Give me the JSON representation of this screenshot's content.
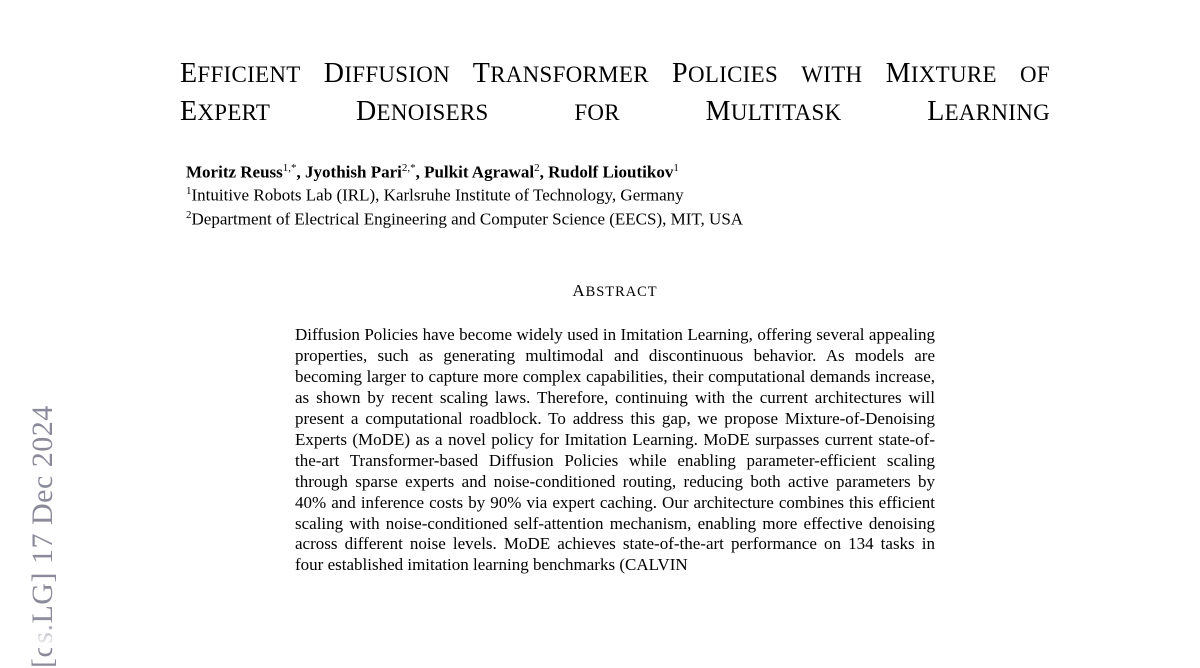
{
  "arxiv_stamp": "[cs.LG]  17 Dec 2024",
  "title_html": "E<span style='font-size:0.82em'>FFICIENT</span> D<span style='font-size:0.82em'>IFFUSION</span> T<span style='font-size:0.82em'>RANSFORMER</span> P<span style='font-size:0.82em'>OLICIES</span> <span style='font-size:0.82em'>WITH</span> M<span style='font-size:0.82em'>IXTURE</span> <span style='font-size:0.82em'>OF</span> E<span style='font-size:0.82em'>XPERT</span> D<span style='font-size:0.82em'>ENOISERS</span> <span style='font-size:0.82em'>FOR</span> M<span style='font-size:0.82em'>ULTITASK</span> L<span style='font-size:0.82em'>EARNING</span>",
  "authors": [
    {
      "name": "Moritz Reuss",
      "marks": "1,*"
    },
    {
      "name": "Jyothish Pari",
      "marks": "2,*"
    },
    {
      "name": "Pulkit Agrawal",
      "marks": "2"
    },
    {
      "name": "Rudolf Lioutikov",
      "marks": "1"
    }
  ],
  "affiliations": [
    {
      "mark": "1",
      "text": "Intuitive Robots Lab (IRL), Karlsruhe Institute of Technology, Germany"
    },
    {
      "mark": "2",
      "text": "Department of Electrical Engineering and Computer Science (EECS), MIT, USA"
    }
  ],
  "abstract_heading": "Abstract",
  "abstract_body": "Diffusion Policies have become widely used in Imitation Learning, offering several appealing properties, such as generating multimodal and discontinuous behavior. As models are becoming larger to capture more complex capabilities, their computational demands increase, as shown by recent scaling laws. Therefore, continuing with the current architectures will present a computational roadblock. To address this gap, we propose Mixture-of-Denoising Experts (MoDE) as a novel policy for Imitation Learning. MoDE surpasses current state-of-the-art Transformer-based Diffusion Policies while enabling parameter-efficient scaling through sparse experts and noise-conditioned routing, reducing both active parameters by 40% and inference costs by 90% via expert caching. Our architecture combines this efficient scaling with noise-conditioned self-attention mechanism, enabling more effective denoising across different noise levels. MoDE achieves state-of-the-art performance on 134 tasks in four established imitation learning benchmarks (CALVIN",
  "style": {
    "background": "#ffffff",
    "text_color": "#000000",
    "stamp_color": "#8a8a9a",
    "title_fontsize_pt": 21,
    "body_fontsize_pt": 12.5,
    "authors_fontsize_pt": 12.5,
    "font_family": "Times New Roman"
  }
}
